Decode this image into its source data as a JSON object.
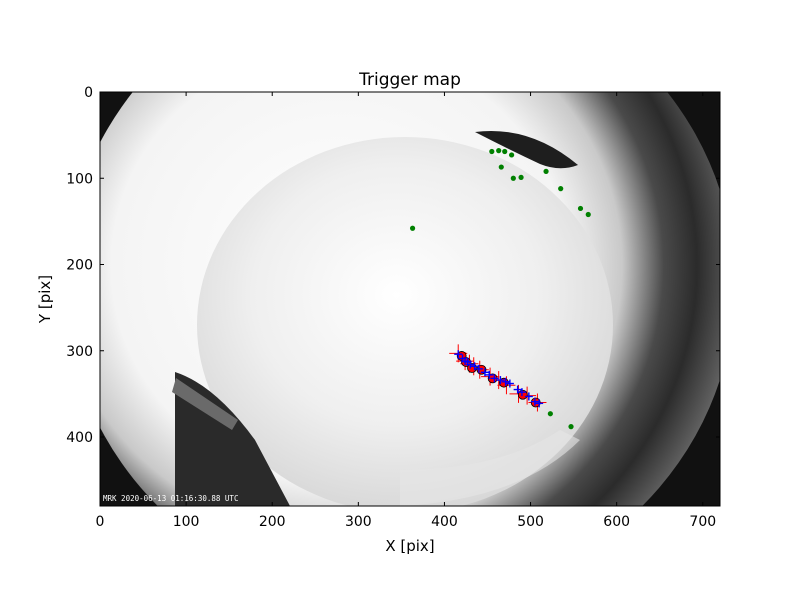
{
  "chart_data": {
    "type": "scatter",
    "title": "Trigger map",
    "xlabel": "X [pix]",
    "ylabel": "Y [pix]",
    "xlim": [
      0,
      720
    ],
    "ylim": [
      480,
      0
    ],
    "xticks": [
      0,
      100,
      200,
      300,
      400,
      500,
      600,
      700
    ],
    "yticks": [
      0,
      100,
      200,
      300,
      400
    ],
    "grid": false,
    "background_image": {
      "kind": "all-sky fisheye camera frame",
      "timestamp_text": "MRK 2020-06-13 01:16:30.88 UTC"
    },
    "series": [
      {
        "marker": "green-dot",
        "color": "#008000",
        "points": [
          [
            455,
            69
          ],
          [
            463,
            68
          ],
          [
            470,
            69
          ],
          [
            478,
            73
          ],
          [
            466,
            87
          ],
          [
            480,
            100
          ],
          [
            489,
            99
          ],
          [
            518,
            92
          ],
          [
            535,
            112
          ],
          [
            558,
            135
          ],
          [
            567,
            142
          ],
          [
            363,
            158
          ],
          [
            523,
            373
          ],
          [
            547,
            388
          ]
        ]
      },
      {
        "marker": "red-plus",
        "color": "#ff0000",
        "points": [
          [
            416,
            303
          ],
          [
            424,
            312
          ],
          [
            429,
            315
          ],
          [
            434,
            318
          ],
          [
            441,
            322
          ],
          [
            453,
            330
          ],
          [
            463,
            334
          ],
          [
            472,
            340
          ],
          [
            486,
            350
          ],
          [
            496,
            352
          ],
          [
            508,
            360
          ]
        ]
      },
      {
        "marker": "red-circle",
        "color": "#ff0000",
        "points": [
          [
            420,
            306
          ],
          [
            425,
            313
          ],
          [
            432,
            320
          ],
          [
            443,
            322
          ],
          [
            456,
            332
          ],
          [
            469,
            337
          ],
          [
            491,
            351
          ],
          [
            506,
            360
          ]
        ]
      },
      {
        "marker": "blue-plus",
        "color": "#0000ff",
        "points": [
          [
            416,
            304
          ],
          [
            421,
            309
          ],
          [
            424,
            312
          ],
          [
            427,
            313
          ],
          [
            430,
            316
          ],
          [
            435,
            318
          ],
          [
            440,
            321
          ],
          [
            447,
            325
          ],
          [
            452,
            328
          ],
          [
            458,
            332
          ],
          [
            465,
            334
          ],
          [
            471,
            336
          ],
          [
            476,
            338
          ],
          [
            485,
            345
          ],
          [
            490,
            348
          ],
          [
            498,
            353
          ],
          [
            505,
            359
          ],
          [
            510,
            361
          ]
        ]
      }
    ]
  }
}
